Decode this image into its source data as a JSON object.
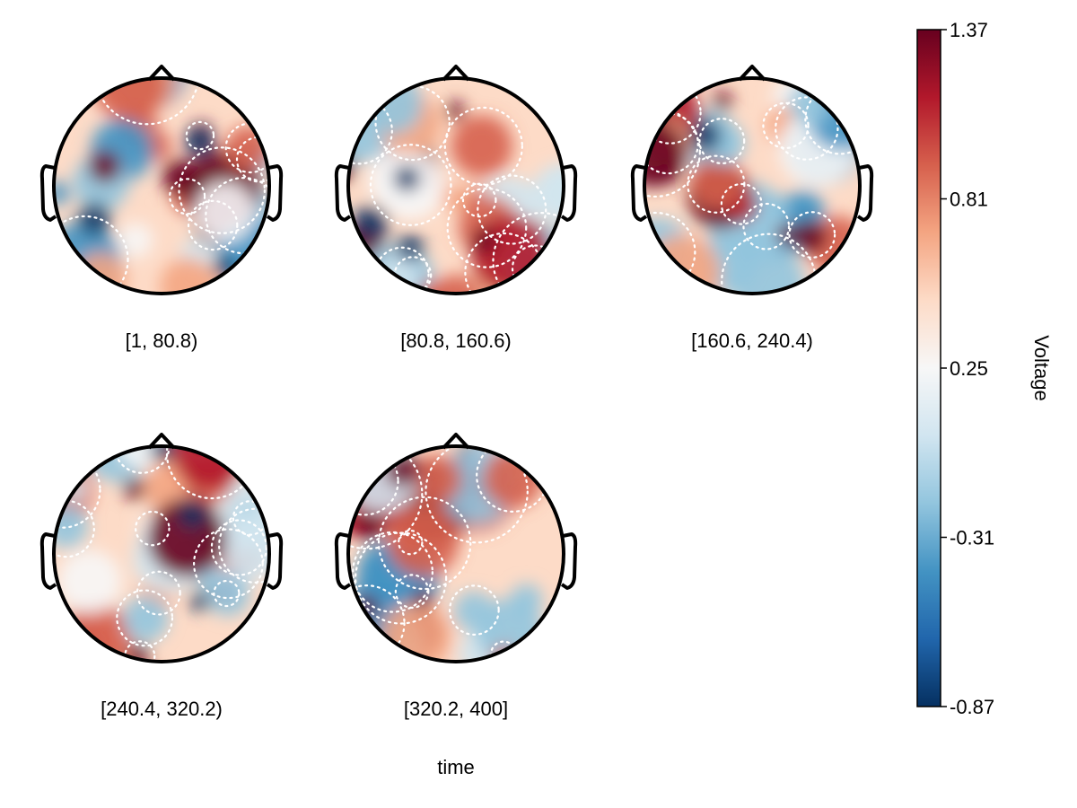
{
  "chart_data": {
    "type": "heatmap",
    "subtype": "topoplot-series",
    "xlabel": "time",
    "panels": [
      {
        "label": "[1, 80.8)"
      },
      {
        "label": "[80.8, 160.6)"
      },
      {
        "label": "[160.6, 240.4)"
      },
      {
        "label": "[240.4, 320.2)"
      },
      {
        "label": "[320.2, 400]"
      }
    ],
    "colorbar": {
      "label": "Voltage",
      "min": -0.87,
      "max": 1.37,
      "ticks": [
        "1.37",
        "0.81",
        "0.25",
        "-0.31",
        "-0.87"
      ],
      "tick_values": [
        1.37,
        0.81,
        0.25,
        -0.31,
        -0.87
      ],
      "colormap": "RdBu_r",
      "stops": [
        "#053061",
        "#2166ac",
        "#4393c3",
        "#92c5de",
        "#d1e5f0",
        "#f7f7f7",
        "#fddbc7",
        "#f4a582",
        "#d6604d",
        "#b2182b",
        "#67001f"
      ]
    },
    "contour_color": "#ffffff",
    "head_outline_color": "#000000"
  }
}
